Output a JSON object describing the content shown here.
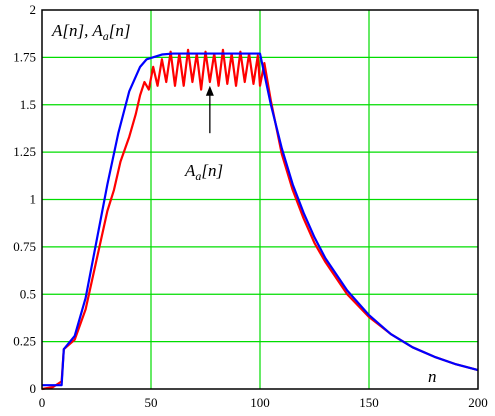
{
  "chart_data": {
    "type": "line",
    "title": "",
    "xlabel": "n",
    "ylabel": "A[n], Aa[n]",
    "xlim": [
      0,
      200
    ],
    "ylim": [
      0,
      2
    ],
    "x_ticks": [
      0,
      50,
      100,
      150,
      200
    ],
    "y_ticks": [
      0,
      0.25,
      0.5,
      0.75,
      1,
      1.25,
      1.5,
      1.75,
      2
    ],
    "x_tick_labels": [
      "0",
      "50",
      "100",
      "150",
      "200"
    ],
    "y_tick_labels": [
      "0",
      "0.25",
      "0.5",
      "0.75",
      "1",
      "1.25",
      "1.5",
      "1.75",
      "2"
    ],
    "grid": true,
    "grid_color": "#00dd00",
    "ylabel_parts": {
      "main_1": "A",
      "bracket_1": "[n], ",
      "main_2": "A",
      "sub_2": "a",
      "bracket_2": "[n]"
    },
    "annotation": {
      "main": "A",
      "sub": "a",
      "rest": "[n]",
      "arrow_from": [
        77,
        1.35
      ],
      "arrow_to": [
        77,
        1.6
      ]
    },
    "series": [
      {
        "color": "#0000ff",
        "x": [
          0,
          9,
          10,
          15,
          20,
          25,
          30,
          35,
          40,
          45,
          48,
          55,
          60,
          70,
          80,
          90,
          100,
          105,
          110,
          115,
          120,
          125,
          130,
          140,
          150,
          160,
          170,
          180,
          190,
          200
        ],
        "y": [
          0.02,
          0.02,
          0.21,
          0.28,
          0.48,
          0.78,
          1.08,
          1.35,
          1.57,
          1.7,
          1.74,
          1.765,
          1.77,
          1.77,
          1.77,
          1.77,
          1.77,
          1.5,
          1.27,
          1.08,
          0.93,
          0.8,
          0.69,
          0.52,
          0.39,
          0.29,
          0.22,
          0.17,
          0.13,
          0.1
        ]
      },
      {
        "color": "#ff0000",
        "x": [
          0,
          5,
          9,
          10,
          15,
          20,
          25,
          30,
          33,
          36,
          40,
          43,
          45,
          47,
          49,
          51,
          53,
          55,
          57,
          59,
          61,
          63,
          65,
          67,
          69,
          71,
          73,
          75,
          77,
          79,
          81,
          83,
          85,
          87,
          89,
          91,
          93,
          95,
          97,
          99,
          100,
          102,
          105,
          110,
          115,
          120,
          125,
          130,
          140,
          150,
          160,
          170,
          180,
          190,
          200
        ],
        "y": [
          0,
          0.01,
          0.04,
          0.21,
          0.26,
          0.42,
          0.68,
          0.94,
          1.05,
          1.2,
          1.33,
          1.45,
          1.55,
          1.62,
          1.58,
          1.7,
          1.6,
          1.74,
          1.62,
          1.78,
          1.6,
          1.77,
          1.6,
          1.79,
          1.62,
          1.77,
          1.58,
          1.78,
          1.62,
          1.77,
          1.6,
          1.79,
          1.61,
          1.77,
          1.6,
          1.78,
          1.62,
          1.77,
          1.61,
          1.76,
          1.6,
          1.72,
          1.52,
          1.24,
          1.05,
          0.9,
          0.77,
          0.67,
          0.5,
          0.38,
          0.29,
          0.22,
          0.17,
          0.13,
          0.1
        ]
      }
    ]
  }
}
